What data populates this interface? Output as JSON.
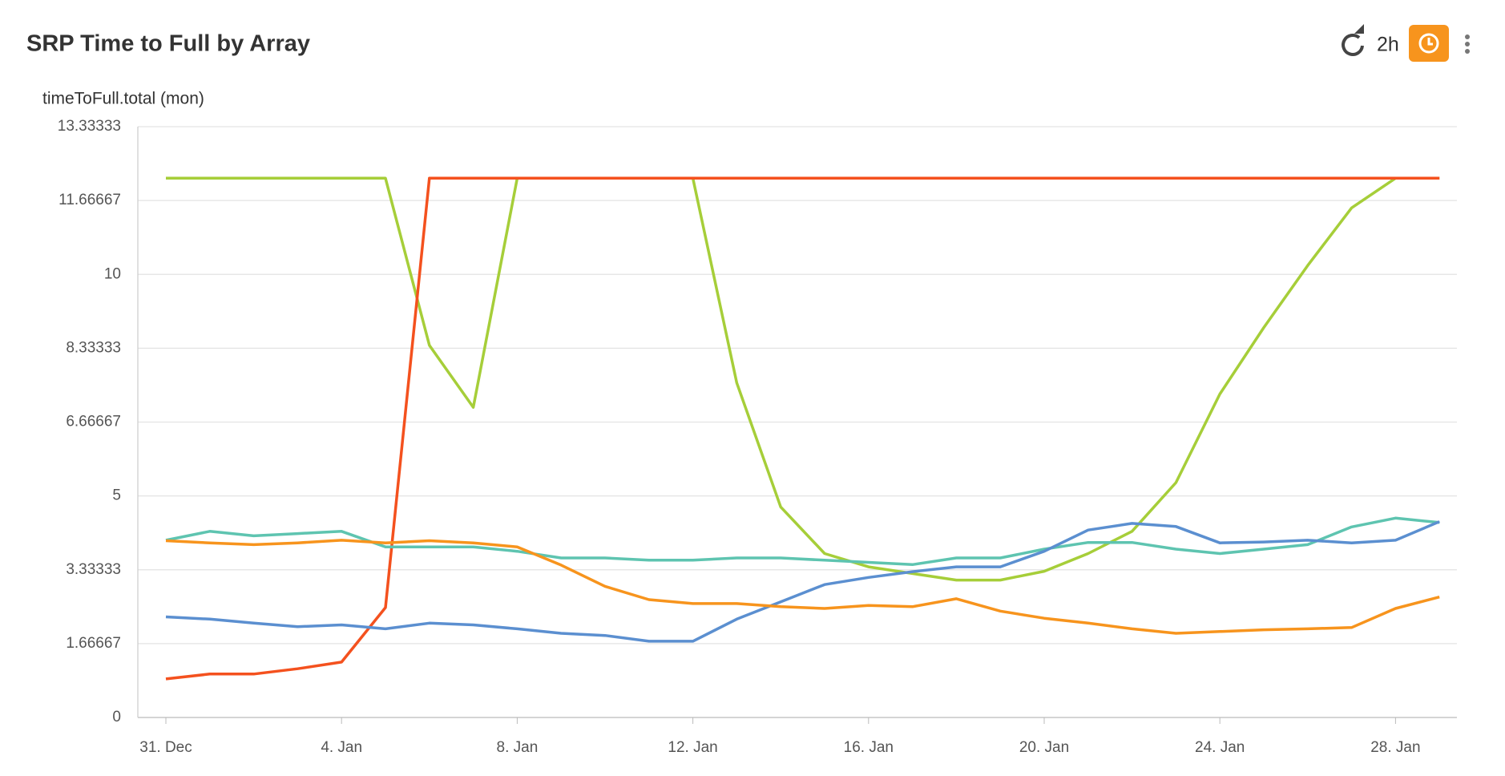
{
  "chart_data": {
    "type": "line",
    "title": "SRP Time to Full by Array",
    "refresh_interval": "2h",
    "y_label": "timeToFull.total (mon)",
    "categories": [
      "31. Dec",
      null,
      null,
      null,
      "4. Jan",
      null,
      null,
      null,
      "8. Jan",
      null,
      null,
      null,
      "12. Jan",
      null,
      null,
      null,
      "16. Jan",
      null,
      null,
      null,
      "20. Jan",
      null,
      null,
      null,
      "24. Jan",
      null,
      null,
      null,
      "28. Jan",
      null
    ],
    "ylim": [
      0,
      13.33333
    ],
    "yticks": [
      0,
      1.66667,
      3.33333,
      5,
      6.66667,
      8.33333,
      10,
      11.66667,
      13.33333
    ],
    "grid": true,
    "series": [
      {
        "color": "#f5c518",
        "values": [
          12.17,
          12.17,
          12.17,
          12.17,
          12.17,
          12.17,
          null,
          null,
          null,
          null,
          null,
          null,
          null,
          null,
          null,
          null,
          null,
          null,
          null,
          null,
          null,
          null,
          null,
          null,
          null,
          null,
          null,
          null,
          null,
          null
        ]
      },
      {
        "color": "#a6ce39",
        "values": [
          12.17,
          12.17,
          12.17,
          12.17,
          12.17,
          12.17,
          8.4,
          7.0,
          12.17,
          12.17,
          12.17,
          12.17,
          12.17,
          7.55,
          4.75,
          3.7,
          3.4,
          3.25,
          3.1,
          3.1,
          3.3,
          3.7,
          4.2,
          5.3,
          7.3,
          8.8,
          10.2,
          11.5,
          12.17,
          12.17
        ]
      },
      {
        "color": "#f4511e",
        "values": [
          0.87,
          0.98,
          0.98,
          1.1,
          1.25,
          2.48,
          12.17,
          12.17,
          12.17,
          12.17,
          12.17,
          12.17,
          12.17,
          12.17,
          12.17,
          12.17,
          12.17,
          12.17,
          12.17,
          12.17,
          12.17,
          12.17,
          12.17,
          12.17,
          12.17,
          12.17,
          12.17,
          12.17,
          12.17,
          12.17
        ]
      },
      {
        "color": "#5ec4b0",
        "values": [
          4.0,
          4.2,
          4.1,
          4.15,
          4.2,
          3.85,
          3.85,
          3.85,
          3.75,
          3.6,
          3.6,
          3.55,
          3.55,
          3.6,
          3.6,
          3.55,
          3.5,
          3.45,
          3.6,
          3.6,
          3.8,
          3.95,
          3.95,
          3.8,
          3.7,
          3.8,
          3.9,
          4.3,
          4.5,
          4.4
        ]
      },
      {
        "color": "#5b8fd0",
        "values": [
          2.27,
          2.22,
          2.13,
          2.05,
          2.09,
          2.0,
          2.13,
          2.09,
          2.0,
          1.9,
          1.85,
          1.72,
          1.72,
          2.22,
          2.61,
          3.0,
          3.16,
          3.29,
          3.4,
          3.4,
          3.75,
          4.23,
          4.38,
          4.31,
          3.94,
          3.96,
          4.0,
          3.94,
          4.0,
          4.42
        ]
      },
      {
        "color": "#f7941d",
        "values": [
          3.99,
          3.94,
          3.9,
          3.94,
          4.0,
          3.94,
          3.99,
          3.94,
          3.85,
          3.44,
          2.96,
          2.66,
          2.57,
          2.57,
          2.5,
          2.46,
          2.53,
          2.5,
          2.68,
          2.4,
          2.24,
          2.13,
          2.0,
          1.9,
          1.94,
          1.98,
          2.0,
          2.03,
          2.46,
          2.72
        ]
      }
    ]
  }
}
